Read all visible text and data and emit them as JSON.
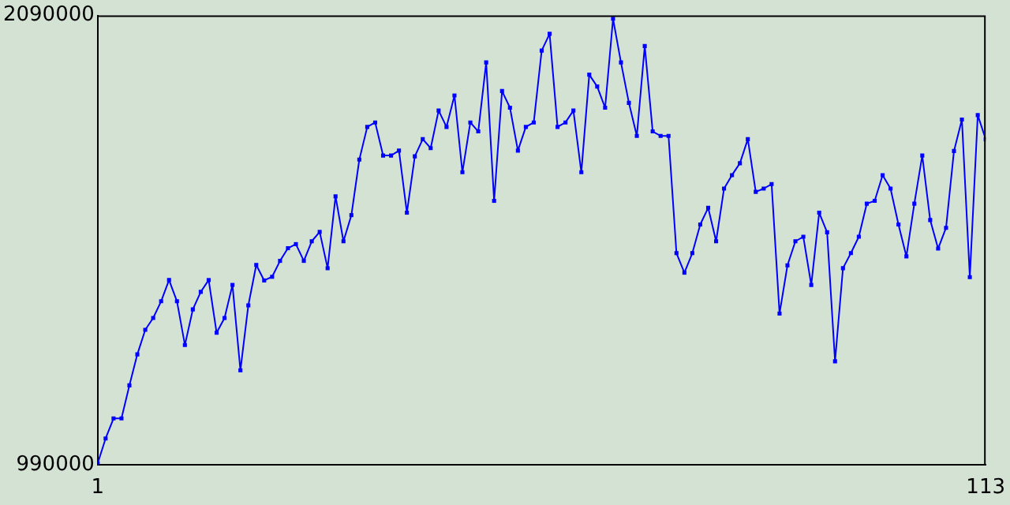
{
  "chart_data": {
    "type": "line",
    "marker": "square",
    "grid": false,
    "legend": false,
    "x": [
      1,
      2,
      3,
      4,
      5,
      6,
      7,
      8,
      9,
      10,
      11,
      12,
      13,
      14,
      15,
      16,
      17,
      18,
      19,
      20,
      21,
      22,
      23,
      24,
      25,
      26,
      27,
      28,
      29,
      30,
      31,
      32,
      33,
      34,
      35,
      36,
      37,
      38,
      39,
      40,
      41,
      42,
      43,
      44,
      45,
      46,
      47,
      48,
      49,
      50,
      51,
      52,
      53,
      54,
      55,
      56,
      57,
      58,
      59,
      60,
      61,
      62,
      63,
      64,
      65,
      66,
      67,
      68,
      69,
      70,
      71,
      72,
      73,
      74,
      75,
      76,
      77,
      78,
      79,
      80,
      81,
      82,
      83,
      84,
      85,
      86,
      87,
      88,
      89,
      90,
      91,
      92,
      93,
      94,
      95,
      96,
      97,
      98,
      99,
      100,
      101,
      102,
      103,
      104,
      105,
      106,
      107,
      108,
      109,
      110,
      111,
      112,
      113
    ],
    "series": [
      {
        "color": "#0000ff",
        "values": [
          993000,
          1054000,
          1103000,
          1103000,
          1184000,
          1260000,
          1320000,
          1349000,
          1390000,
          1442000,
          1390000,
          1283000,
          1370000,
          1413000,
          1442000,
          1313000,
          1349000,
          1430000,
          1221000,
          1380000,
          1479000,
          1441000,
          1450000,
          1489000,
          1520000,
          1530000,
          1489000,
          1537000,
          1560000,
          1471000,
          1647000,
          1537000,
          1601000,
          1737000,
          1817000,
          1828000,
          1747000,
          1747000,
          1759000,
          1607000,
          1745000,
          1787000,
          1765000,
          1857000,
          1817000,
          1894000,
          1706000,
          1828000,
          1806000,
          1975000,
          1636000,
          1905000,
          1864000,
          1759000,
          1817000,
          1828000,
          2004000,
          2045000,
          1817000,
          1828000,
          1857000,
          1706000,
          1945000,
          1916000,
          1864000,
          2082000,
          1975000,
          1876000,
          1795000,
          2015000,
          1806000,
          1795000,
          1795000,
          1508000,
          1460000,
          1508000,
          1578000,
          1619000,
          1537000,
          1666000,
          1699000,
          1728000,
          1787000,
          1658000,
          1666000,
          1677000,
          1360000,
          1478000,
          1537000,
          1548000,
          1430000,
          1607000,
          1559000,
          1243000,
          1471000,
          1508000,
          1548000,
          1629000,
          1636000,
          1699000,
          1666000,
          1578000,
          1500000,
          1629000,
          1747000,
          1589000,
          1519000,
          1570000,
          1758000,
          1835000,
          1449000,
          1846000,
          1787000
        ]
      }
    ],
    "xlim": [
      1,
      113
    ],
    "xticks": [
      1,
      113
    ],
    "ylim": [
      990000,
      2090000
    ],
    "yticks": [
      990000,
      2090000
    ]
  }
}
